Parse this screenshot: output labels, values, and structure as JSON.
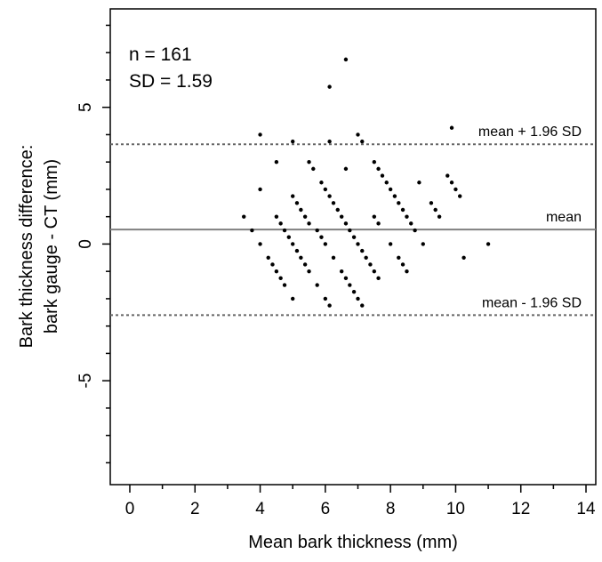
{
  "chart_data": {
    "type": "scatter",
    "xlabel": "Mean bark thickness (mm)",
    "ylabel_line1": "Bark thickness difference:",
    "ylabel_line2": "bark gauge - CT (mm)",
    "xlim": [
      -0.6,
      14.3
    ],
    "ylim": [
      -8.8,
      8.6
    ],
    "x_ticks": [
      0,
      2,
      4,
      6,
      8,
      10,
      12,
      14
    ],
    "y_ticks": [
      -5,
      0,
      5
    ],
    "grid": false,
    "stats": {
      "n_text": "n =  161",
      "sd_text": "SD =  1.59"
    },
    "ref_lines": [
      {
        "name": "mean + 1.96 SD",
        "label": "mean + 1.96 SD",
        "y": 3.65,
        "style": "dotted",
        "color": "#666666"
      },
      {
        "name": "mean",
        "label": "mean",
        "y": 0.53,
        "style": "solid",
        "color": "#808080"
      },
      {
        "name": "mean - 1.96 SD",
        "label": "mean - 1.96 SD",
        "y": -2.6,
        "style": "dotted",
        "color": "#666666"
      }
    ],
    "points": [
      [
        3.5,
        1.0
      ],
      [
        3.75,
        0.5
      ],
      [
        4.0,
        0.0
      ],
      [
        4.25,
        -0.5
      ],
      [
        4.38,
        -0.75
      ],
      [
        4.5,
        -1.0
      ],
      [
        4.63,
        -1.25
      ],
      [
        4.75,
        -1.5
      ],
      [
        4.5,
        1.0
      ],
      [
        4.63,
        0.75
      ],
      [
        4.75,
        0.5
      ],
      [
        4.88,
        0.25
      ],
      [
        5.0,
        0.0
      ],
      [
        5.13,
        -0.25
      ],
      [
        5.25,
        -0.5
      ],
      [
        5.38,
        -0.75
      ],
      [
        5.5,
        -1.0
      ],
      [
        5.75,
        -1.5
      ],
      [
        6.0,
        -2.0
      ],
      [
        6.13,
        -2.25
      ],
      [
        5.0,
        1.75
      ],
      [
        5.13,
        1.5
      ],
      [
        5.25,
        1.25
      ],
      [
        5.38,
        1.0
      ],
      [
        5.5,
        0.75
      ],
      [
        5.75,
        0.5
      ],
      [
        5.88,
        0.25
      ],
      [
        6.0,
        0.0
      ],
      [
        6.25,
        -0.5
      ],
      [
        6.5,
        -1.0
      ],
      [
        6.63,
        -1.25
      ],
      [
        6.75,
        -1.5
      ],
      [
        6.88,
        -1.75
      ],
      [
        7.0,
        -2.0
      ],
      [
        7.13,
        -2.25
      ],
      [
        5.0,
        -2.0
      ],
      [
        5.5,
        3.0
      ],
      [
        5.63,
        2.75
      ],
      [
        5.88,
        2.25
      ],
      [
        6.0,
        2.0
      ],
      [
        6.13,
        1.75
      ],
      [
        6.25,
        1.5
      ],
      [
        6.38,
        1.25
      ],
      [
        6.5,
        1.0
      ],
      [
        6.63,
        0.75
      ],
      [
        6.75,
        0.5
      ],
      [
        6.88,
        0.25
      ],
      [
        7.0,
        0.0
      ],
      [
        7.13,
        -0.25
      ],
      [
        7.25,
        -0.5
      ],
      [
        7.38,
        -0.75
      ],
      [
        7.5,
        -1.0
      ],
      [
        7.63,
        -1.25
      ],
      [
        7.5,
        3.0
      ],
      [
        7.63,
        2.75
      ],
      [
        7.75,
        2.5
      ],
      [
        7.88,
        2.25
      ],
      [
        8.0,
        2.0
      ],
      [
        8.13,
        1.75
      ],
      [
        8.25,
        1.5
      ],
      [
        8.38,
        1.25
      ],
      [
        8.5,
        1.0
      ],
      [
        8.63,
        0.75
      ],
      [
        8.75,
        0.5
      ],
      [
        9.0,
        0.0
      ],
      [
        7.5,
        1.0
      ],
      [
        7.63,
        0.75
      ],
      [
        8.0,
        0.0
      ],
      [
        8.25,
        -0.5
      ],
      [
        8.38,
        -0.75
      ],
      [
        8.5,
        -1.0
      ],
      [
        9.25,
        1.5
      ],
      [
        9.38,
        1.25
      ],
      [
        9.5,
        1.0
      ],
      [
        9.75,
        2.5
      ],
      [
        9.88,
        2.25
      ],
      [
        10.0,
        2.0
      ],
      [
        10.13,
        1.75
      ],
      [
        4.0,
        2.0
      ],
      [
        4.0,
        4.0
      ],
      [
        4.5,
        3.0
      ],
      [
        5.0,
        3.75
      ],
      [
        6.13,
        3.75
      ],
      [
        6.63,
        2.75
      ],
      [
        7.0,
        4.0
      ],
      [
        7.13,
        3.75
      ],
      [
        8.88,
        2.25
      ],
      [
        9.88,
        4.25
      ],
      [
        10.25,
        -0.5
      ],
      [
        11.0,
        0.0
      ],
      [
        6.63,
        6.75
      ],
      [
        6.13,
        5.75
      ]
    ]
  }
}
